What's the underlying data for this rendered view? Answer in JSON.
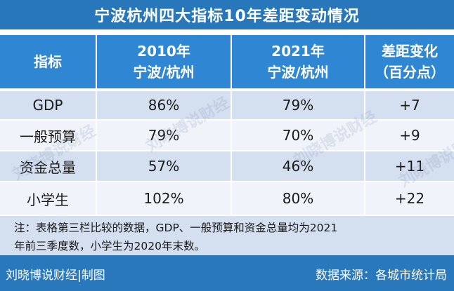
{
  "title": "宁波杭州四大指标10年差距变动情况",
  "table": {
    "headers": [
      {
        "line1": "指标",
        "line2": ""
      },
      {
        "line1": "2010年",
        "line2": "宁波/杭州"
      },
      {
        "line1": "2021年",
        "line2": "宁波/杭州"
      },
      {
        "line1": "差距变化",
        "line2": "（百分点）"
      }
    ],
    "rows": [
      {
        "indicator": "GDP",
        "y2010": "86%",
        "y2021": "79%",
        "change": "+7"
      },
      {
        "indicator": "一般预算",
        "y2010": "79%",
        "y2021": "70%",
        "change": "+9"
      },
      {
        "indicator": "资金总量",
        "y2010": "57%",
        "y2021": "46%",
        "change": "+11"
      },
      {
        "indicator": "小学生",
        "y2010": "102%",
        "y2021": "80%",
        "change": "+22"
      }
    ]
  },
  "note": {
    "line1": "注：表格第三栏比较的数据，GDP、一般预算和资金总量均为2021",
    "line2": "年前三季度数，小学生为2020年末数。"
  },
  "footer": {
    "left": "刘晓博说财经|制图",
    "right": "数据来源：各城市统计局"
  },
  "watermark": "刘晓博说财经",
  "colors": {
    "title_bg": "#2877bb",
    "header_bg": "#2f86d2",
    "row_dark": "#d4dff0",
    "row_light": "#f0f4fa",
    "footer_bg": "#2a78bc"
  }
}
